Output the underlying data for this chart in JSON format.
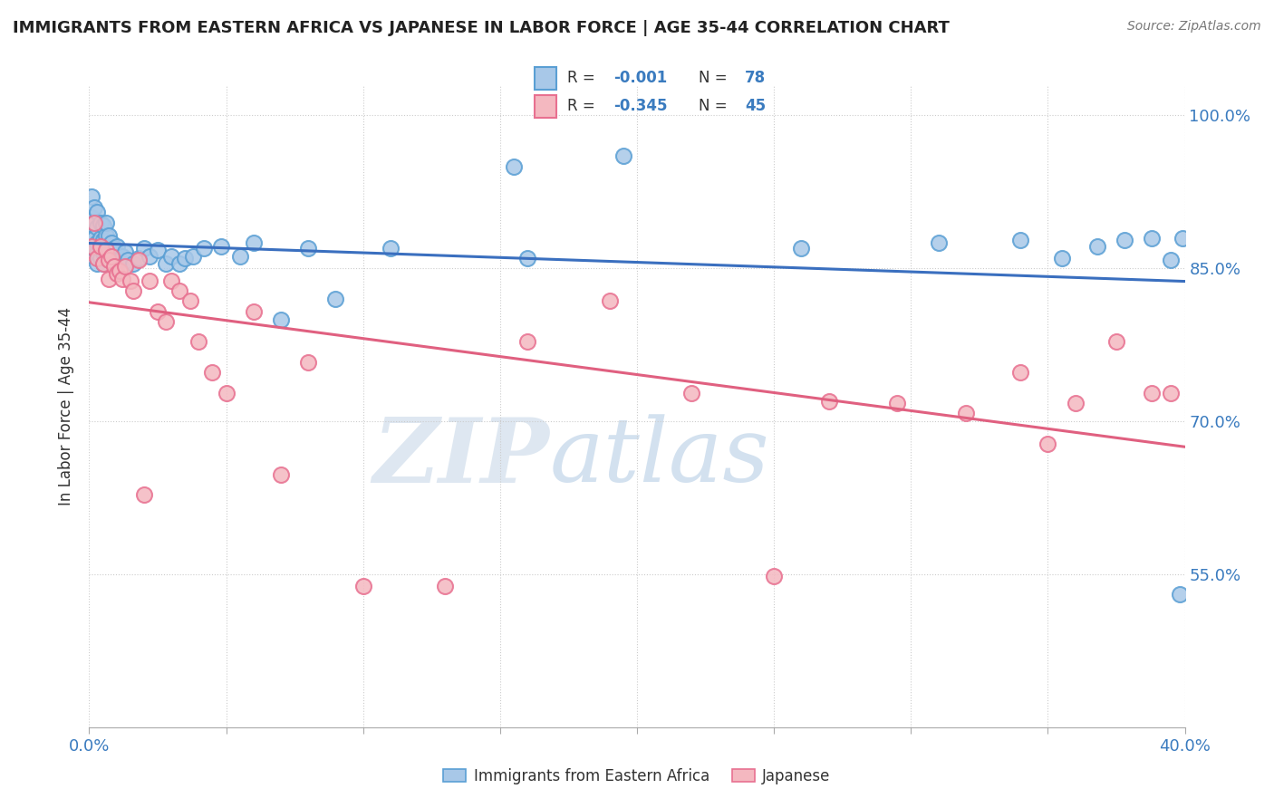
{
  "title": "IMMIGRANTS FROM EASTERN AFRICA VS JAPANESE IN LABOR FORCE | AGE 35-44 CORRELATION CHART",
  "source": "Source: ZipAtlas.com",
  "ylabel": "In Labor Force | Age 35-44",
  "xlim": [
    0.0,
    0.4
  ],
  "ylim": [
    0.4,
    1.03
  ],
  "xticks": [
    0.0,
    0.05,
    0.1,
    0.15,
    0.2,
    0.25,
    0.3,
    0.35,
    0.4
  ],
  "xticklabels": [
    "0.0%",
    "",
    "",
    "",
    "",
    "",
    "",
    "",
    "40.0%"
  ],
  "yticks": [
    0.55,
    0.7,
    0.85,
    1.0
  ],
  "yticklabels": [
    "55.0%",
    "70.0%",
    "85.0%",
    "100.0%"
  ],
  "blue_color": "#a8c8e8",
  "blue_edge_color": "#5a9fd4",
  "pink_color": "#f4b8c0",
  "pink_edge_color": "#e87090",
  "blue_line_color": "#3a6fbf",
  "pink_line_color": "#e06080",
  "legend_blue_label": "Immigrants from Eastern Africa",
  "legend_pink_label": "Japanese",
  "watermark_zip": "ZIP",
  "watermark_atlas": "atlas",
  "blue_x": [
    0.001,
    0.001,
    0.001,
    0.002,
    0.002,
    0.002,
    0.002,
    0.003,
    0.003,
    0.003,
    0.003,
    0.003,
    0.004,
    0.004,
    0.004,
    0.004,
    0.005,
    0.005,
    0.005,
    0.005,
    0.006,
    0.006,
    0.006,
    0.006,
    0.007,
    0.007,
    0.007,
    0.008,
    0.008,
    0.009,
    0.009,
    0.01,
    0.01,
    0.011,
    0.012,
    0.013,
    0.014,
    0.016,
    0.018,
    0.02,
    0.022,
    0.025,
    0.028,
    0.03,
    0.033,
    0.035,
    0.038,
    0.042,
    0.048,
    0.055,
    0.06,
    0.07,
    0.08,
    0.09,
    0.11,
    0.155,
    0.16,
    0.195,
    0.26,
    0.31,
    0.34,
    0.355,
    0.368,
    0.378,
    0.388,
    0.395,
    0.398,
    0.399
  ],
  "blue_y": [
    0.88,
    0.9,
    0.92,
    0.87,
    0.88,
    0.895,
    0.91,
    0.855,
    0.865,
    0.875,
    0.89,
    0.905,
    0.86,
    0.87,
    0.88,
    0.895,
    0.855,
    0.865,
    0.878,
    0.892,
    0.86,
    0.872,
    0.882,
    0.895,
    0.858,
    0.87,
    0.882,
    0.86,
    0.875,
    0.858,
    0.87,
    0.86,
    0.872,
    0.858,
    0.862,
    0.866,
    0.858,
    0.855,
    0.86,
    0.87,
    0.862,
    0.868,
    0.855,
    0.862,
    0.855,
    0.86,
    0.862,
    0.87,
    0.872,
    0.862,
    0.875,
    0.8,
    0.87,
    0.82,
    0.87,
    0.95,
    0.86,
    0.96,
    0.87,
    0.875,
    0.878,
    0.86,
    0.872,
    0.878,
    0.88,
    0.858,
    0.53,
    0.88
  ],
  "pink_x": [
    0.001,
    0.002,
    0.003,
    0.004,
    0.005,
    0.006,
    0.007,
    0.007,
    0.008,
    0.009,
    0.01,
    0.011,
    0.012,
    0.013,
    0.015,
    0.016,
    0.018,
    0.02,
    0.022,
    0.025,
    0.028,
    0.03,
    0.033,
    0.037,
    0.04,
    0.045,
    0.05,
    0.06,
    0.07,
    0.08,
    0.1,
    0.13,
    0.16,
    0.19,
    0.22,
    0.25,
    0.27,
    0.295,
    0.32,
    0.34,
    0.35,
    0.36,
    0.375,
    0.388,
    0.395
  ],
  "pink_y": [
    0.872,
    0.895,
    0.86,
    0.872,
    0.855,
    0.868,
    0.858,
    0.84,
    0.862,
    0.852,
    0.845,
    0.848,
    0.84,
    0.852,
    0.838,
    0.828,
    0.858,
    0.628,
    0.838,
    0.808,
    0.798,
    0.838,
    0.828,
    0.818,
    0.778,
    0.748,
    0.728,
    0.808,
    0.648,
    0.758,
    0.538,
    0.538,
    0.778,
    0.818,
    0.728,
    0.548,
    0.72,
    0.718,
    0.708,
    0.748,
    0.678,
    0.718,
    0.778,
    0.728,
    0.728
  ]
}
